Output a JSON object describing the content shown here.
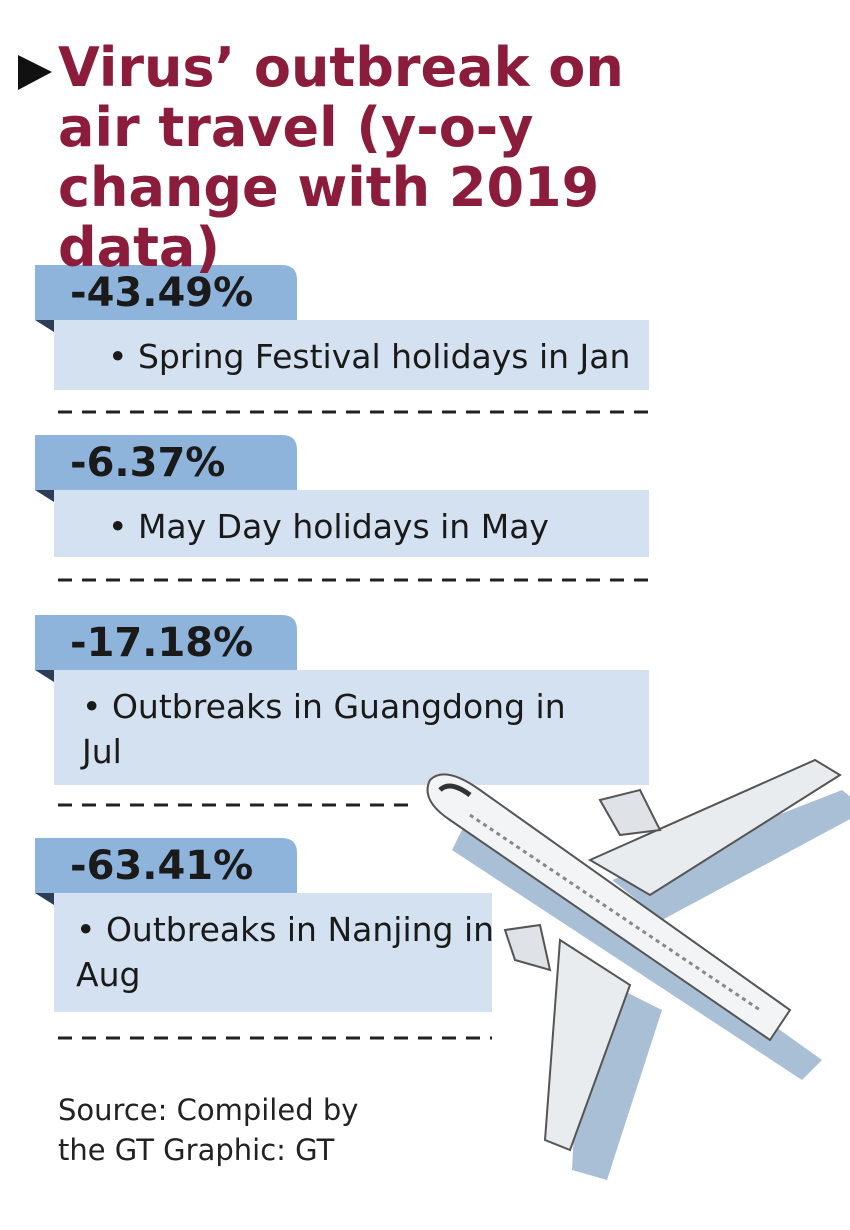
{
  "title": "Virus’ outbreak on air travel (y-o-y change with 2019 data)",
  "items": [
    {
      "value": "-43.49%",
      "description": "• Spring Festival holidays in Jan"
    },
    {
      "value": "-6.37%",
      "description": "• May Day holidays in May"
    },
    {
      "value": "-17.18%",
      "description": "• Outbreaks in Guangdong in Jul"
    },
    {
      "value": "-63.41%",
      "description": "• Outbreaks in Nanjing in Aug"
    }
  ],
  "source": "Source: Compiled by the GT Graphic: GT"
}
